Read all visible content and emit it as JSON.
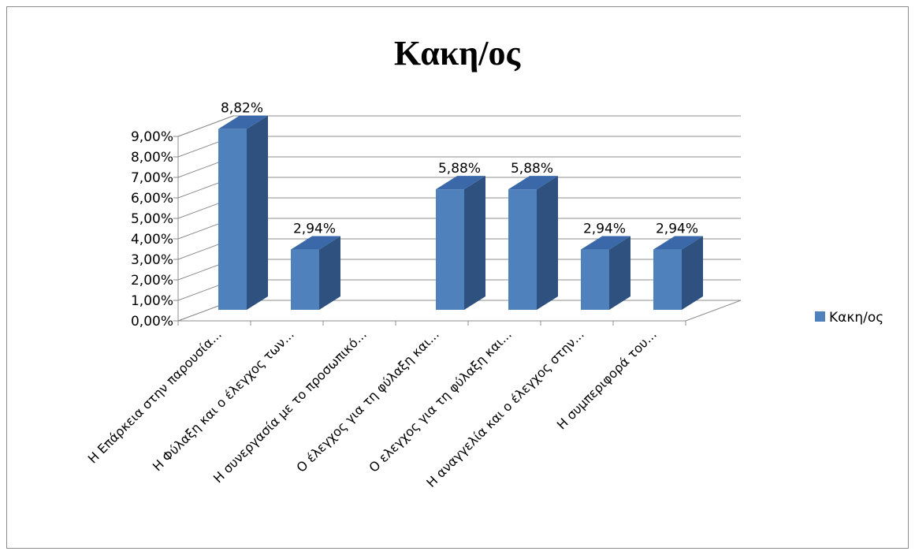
{
  "chart_data": {
    "type": "bar",
    "title": "Κακη/ος",
    "categories": [
      "Η Επάρκεια στην παρουσία...",
      "Η Φύλαξη και ο έλεγχος των...",
      "Η συνεργασία με το προσωπικό...",
      "Ο έλεγχος για τη φύλαξη και...",
      "Ο ελεγχος για τη φύλαξη και...",
      "Η αναγγελία και ο έλεγχος στην...",
      "Η συμπεριφορά του..."
    ],
    "series": [
      {
        "name": "Κακη/ος",
        "color": "#4f81bd",
        "values": [
          0.0882,
          0.0294,
          0,
          0.0588,
          0.0588,
          0.0294,
          0.0294
        ],
        "data_labels": [
          "8,82%",
          "2,94%",
          "",
          "5,88%",
          "5,88%",
          "2,94%",
          "2,94%"
        ]
      }
    ],
    "ylim": [
      0,
      0.09
    ],
    "ytick_labels": [
      "0,00%",
      "1,00%",
      "2,00%",
      "3,00%",
      "4,00%",
      "5,00%",
      "6,00%",
      "7,00%",
      "8,00%",
      "9,00%"
    ],
    "grid": true,
    "legend_position": "right",
    "style": "3d-column"
  }
}
